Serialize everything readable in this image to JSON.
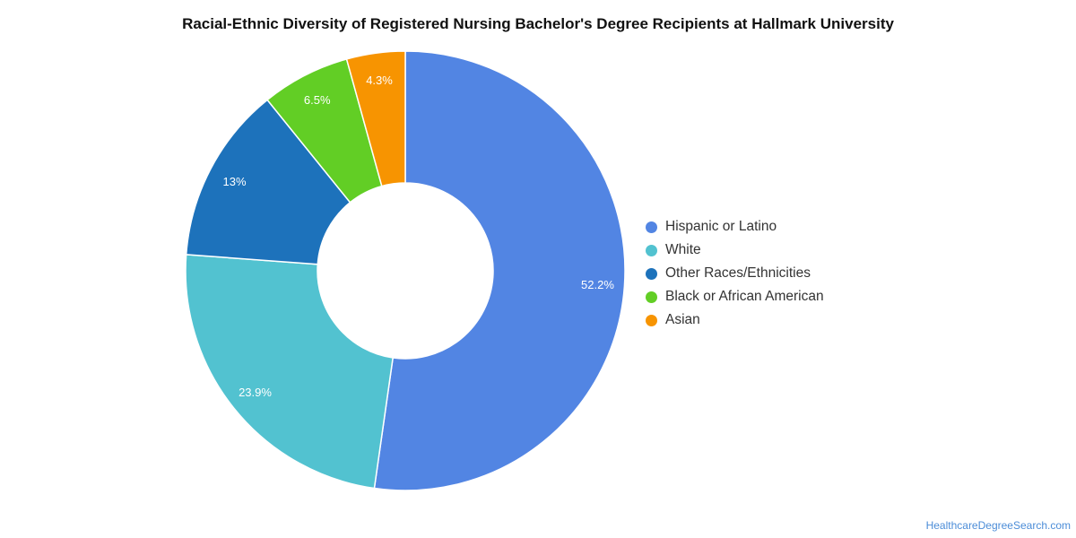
{
  "chart_data": {
    "type": "pie",
    "title": "Racial-Ethnic Diversity of Registered Nursing Bachelor's Degree Recipients at Hallmark University",
    "categories": [
      "Hispanic or Latino",
      "White",
      "Other Races/Ethnicities",
      "Black or African American",
      "Asian"
    ],
    "values": [
      52.2,
      23.9,
      13,
      6.5,
      4.3
    ],
    "labels": [
      "52.2%",
      "23.9%",
      "13%",
      "6.5%",
      "4.3%"
    ],
    "colors": [
      "#5285e3",
      "#52c2d0",
      "#1d72bb",
      "#62ce25",
      "#f79401"
    ],
    "donut": true,
    "legend_position": "right"
  },
  "credit": "HealthcareDegreeSearch.com"
}
